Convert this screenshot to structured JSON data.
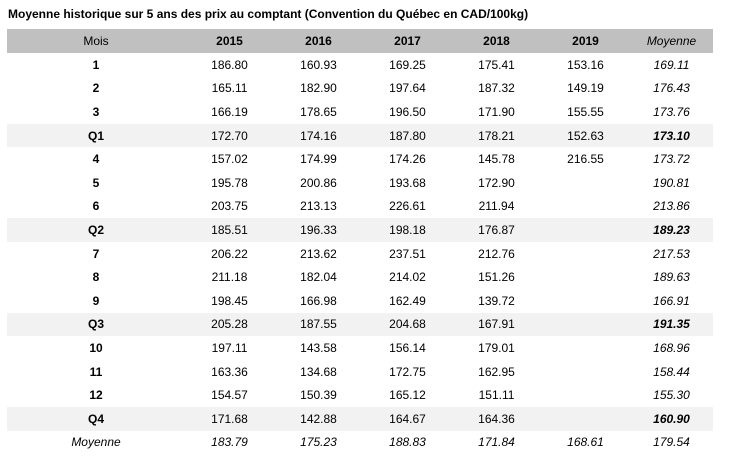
{
  "title": "Moyenne historique sur 5 ans des prix au comptant (Convention du Québec en CAD/100kg)",
  "colors": {
    "header_bg": "#c0c0c0",
    "quarter_row_bg": "#f2f2f2",
    "text": "#000000"
  },
  "table": {
    "columns": [
      "Mois",
      "2015",
      "2016",
      "2017",
      "2018",
      "2019",
      "Moyenne"
    ],
    "rows": [
      {
        "label": "1",
        "type": "month",
        "values": [
          "186.80",
          "160.93",
          "169.25",
          "175.41",
          "153.16",
          "169.11"
        ]
      },
      {
        "label": "2",
        "type": "month",
        "values": [
          "165.11",
          "182.90",
          "197.64",
          "187.32",
          "149.19",
          "176.43"
        ]
      },
      {
        "label": "3",
        "type": "month",
        "values": [
          "166.19",
          "178.65",
          "196.50",
          "171.90",
          "155.55",
          "173.76"
        ]
      },
      {
        "label": "Q1",
        "type": "quarter",
        "values": [
          "172.70",
          "174.16",
          "187.80",
          "178.21",
          "152.63",
          "173.10"
        ]
      },
      {
        "label": "4",
        "type": "month",
        "values": [
          "157.02",
          "174.99",
          "174.26",
          "145.78",
          "216.55",
          "173.72"
        ]
      },
      {
        "label": "5",
        "type": "month",
        "values": [
          "195.78",
          "200.86",
          "193.68",
          "172.90",
          "",
          "190.81"
        ]
      },
      {
        "label": "6",
        "type": "month",
        "values": [
          "203.75",
          "213.13",
          "226.61",
          "211.94",
          "",
          "213.86"
        ]
      },
      {
        "label": "Q2",
        "type": "quarter",
        "values": [
          "185.51",
          "196.33",
          "198.18",
          "176.87",
          "",
          "189.23"
        ]
      },
      {
        "label": "7",
        "type": "month",
        "values": [
          "206.22",
          "213.62",
          "237.51",
          "212.76",
          "",
          "217.53"
        ]
      },
      {
        "label": "8",
        "type": "month",
        "values": [
          "211.18",
          "182.04",
          "214.02",
          "151.26",
          "",
          "189.63"
        ]
      },
      {
        "label": "9",
        "type": "month",
        "values": [
          "198.45",
          "166.98",
          "162.49",
          "139.72",
          "",
          "166.91"
        ]
      },
      {
        "label": "Q3",
        "type": "quarter",
        "values": [
          "205.28",
          "187.55",
          "204.68",
          "167.91",
          "",
          "191.35"
        ]
      },
      {
        "label": "10",
        "type": "month",
        "values": [
          "197.11",
          "143.58",
          "156.14",
          "179.01",
          "",
          "168.96"
        ]
      },
      {
        "label": "11",
        "type": "month",
        "values": [
          "163.36",
          "134.68",
          "172.75",
          "162.95",
          "",
          "158.44"
        ]
      },
      {
        "label": "12",
        "type": "month",
        "values": [
          "154.57",
          "150.39",
          "165.12",
          "151.11",
          "",
          "155.30"
        ]
      },
      {
        "label": "Q4",
        "type": "quarter",
        "values": [
          "171.68",
          "142.88",
          "164.67",
          "164.36",
          "",
          "160.90"
        ]
      },
      {
        "label": "Moyenne",
        "type": "average",
        "values": [
          "183.79",
          "175.23",
          "188.83",
          "171.84",
          "168.61",
          "179.54"
        ]
      }
    ]
  }
}
